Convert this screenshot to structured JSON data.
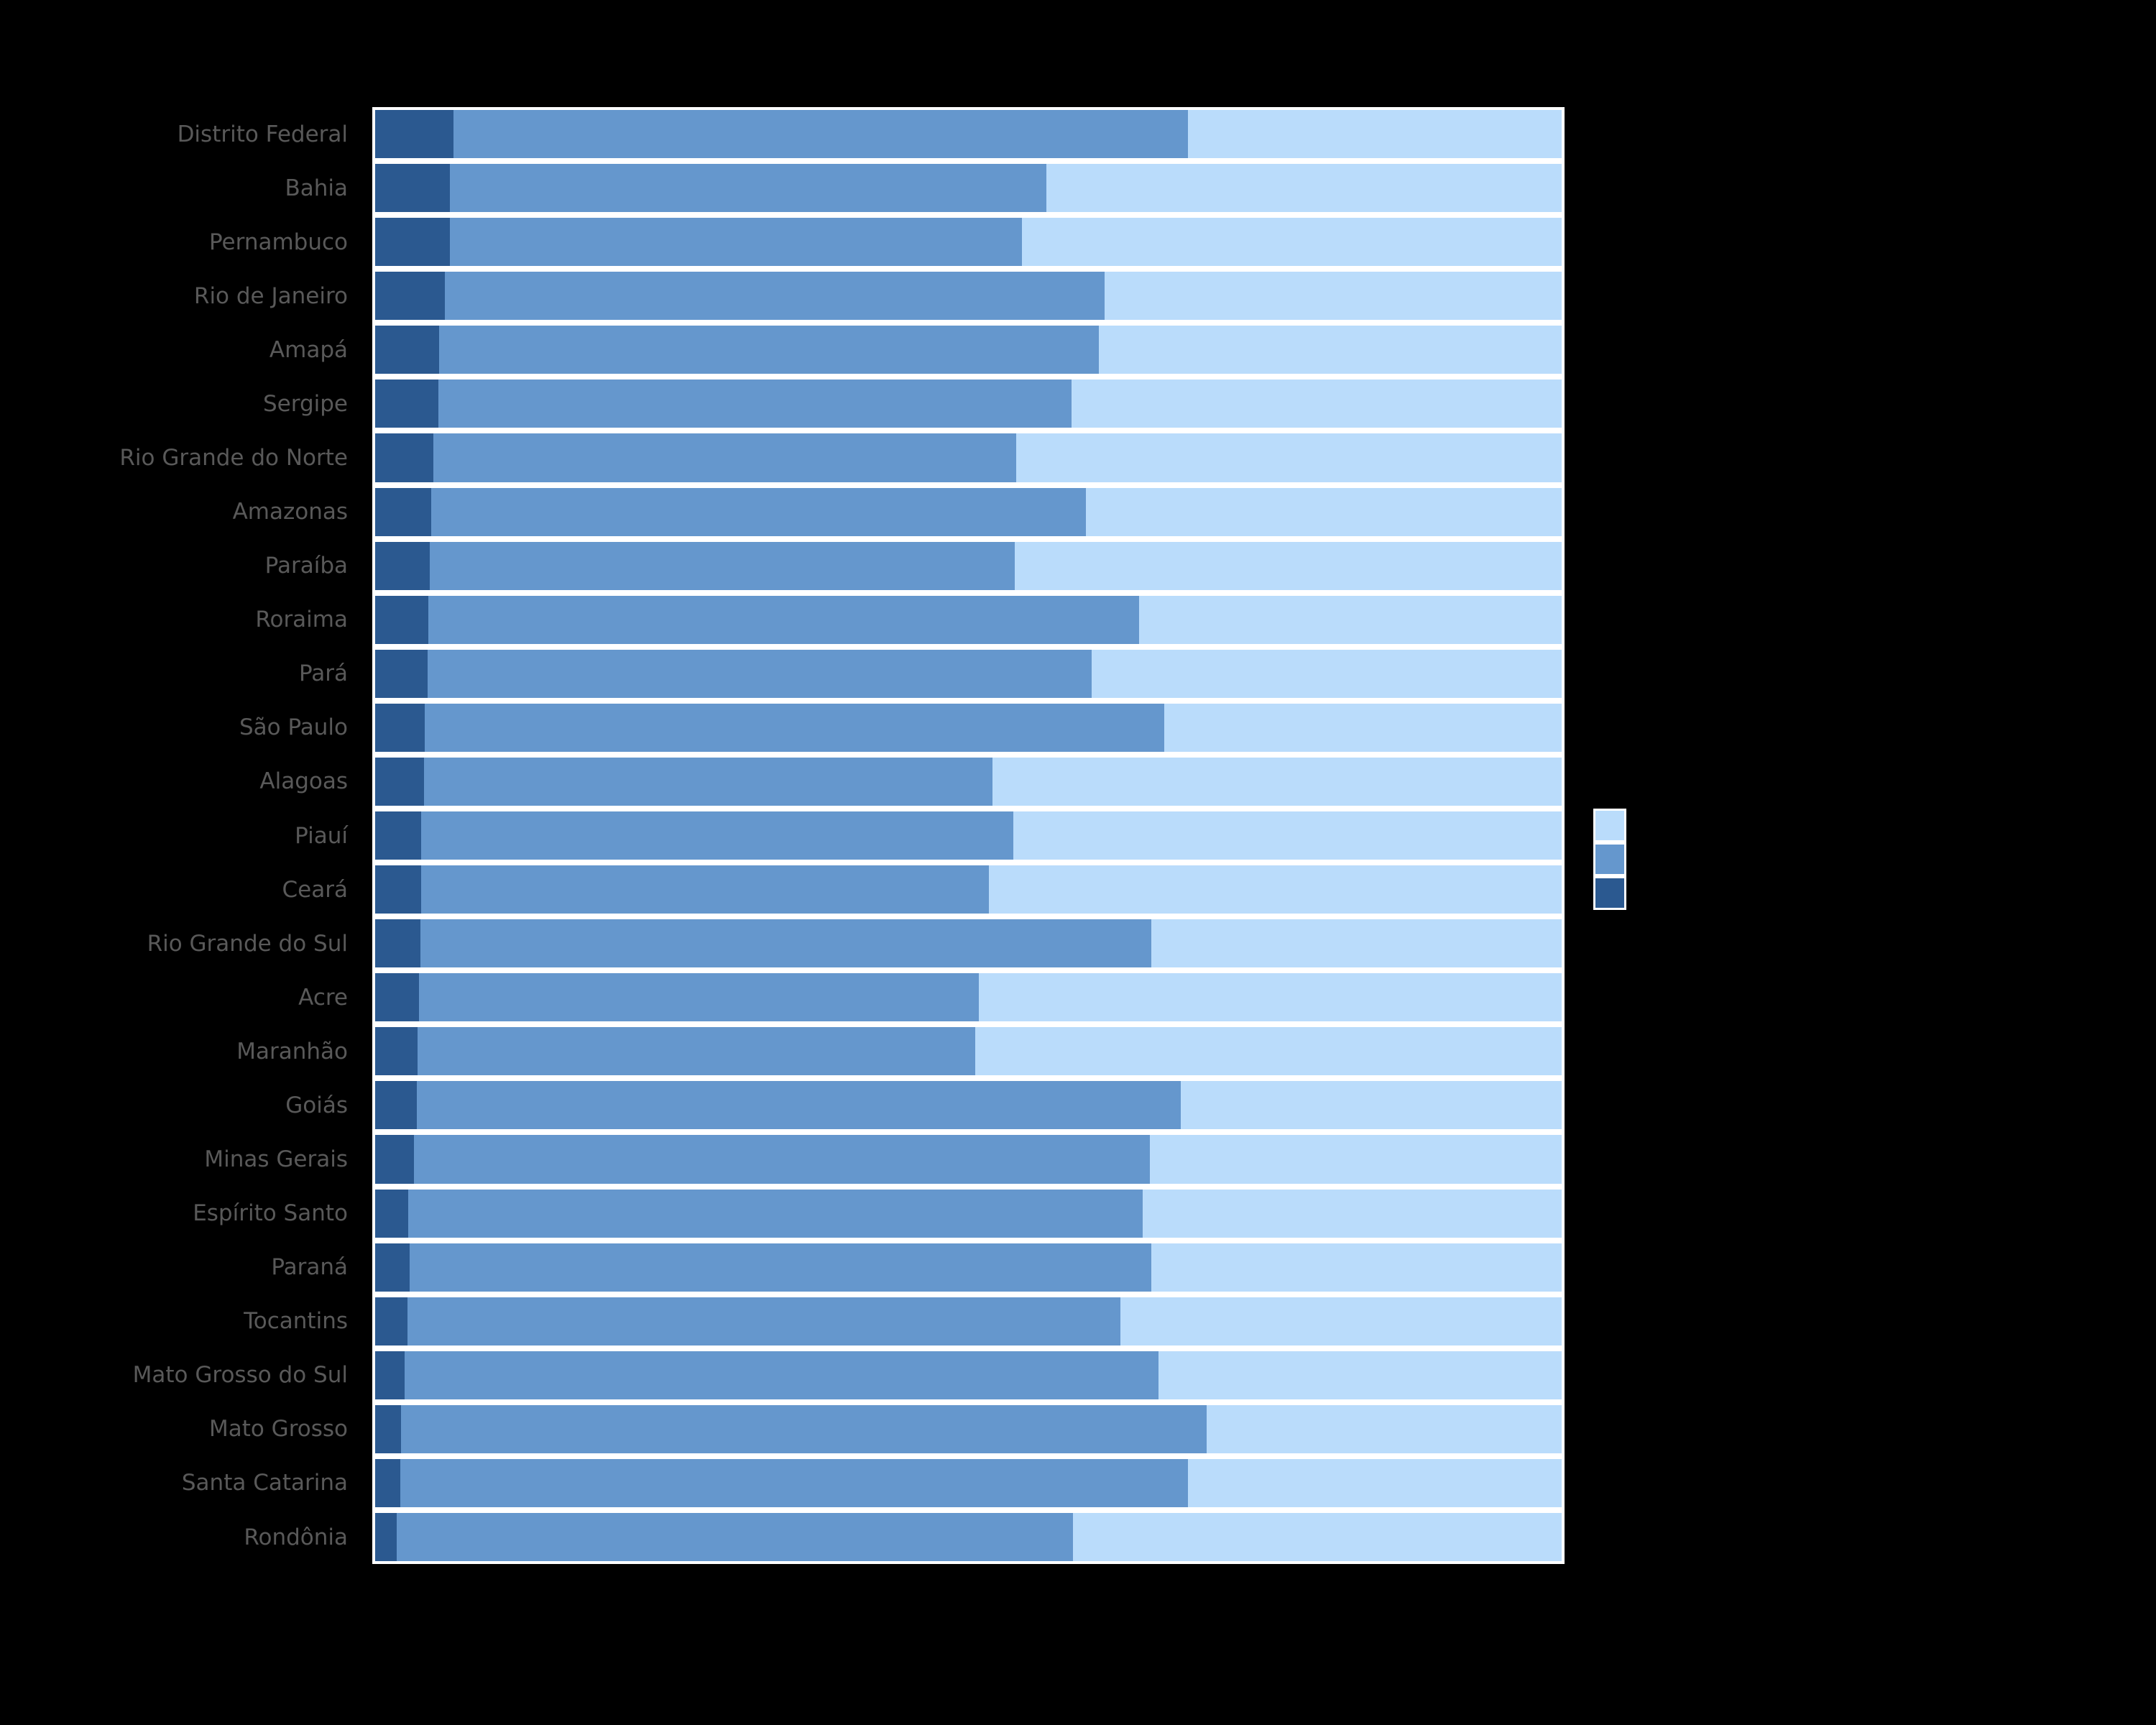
{
  "figure": {
    "background_color": "#000000",
    "tick_label_color": "#595959",
    "bar_edge_color": "#ffffff",
    "title_visible": false,
    "x_axis_tick_labels_visible": false,
    "legend_text_visible": false
  },
  "legend": {
    "position": "right-of-plot-middle",
    "labels_visible": false,
    "swatches_top_to_bottom": [
      {
        "key": "light",
        "color": "#BADCFB"
      },
      {
        "key": "medium",
        "color": "#6597CD"
      },
      {
        "key": "dark",
        "color": "#2B5990"
      }
    ]
  },
  "chart_data": {
    "type": "bar",
    "orientation": "horizontal",
    "stacked": true,
    "normalized_percent": true,
    "title": "",
    "xlabel": "",
    "ylabel": "",
    "grid": false,
    "xlim": [
      0,
      100
    ],
    "categories": [
      "Distrito Federal",
      "Bahia",
      "Pernambuco",
      "Rio de Janeiro",
      "Amapá",
      "Sergipe",
      "Rio Grande do Norte",
      "Amazonas",
      "Paraíba",
      "Roraima",
      "Pará",
      "São Paulo",
      "Alagoas",
      "Piauí",
      "Ceará",
      "Rio Grande do Sul",
      "Acre",
      "Maranhão",
      "Goiás",
      "Minas Gerais",
      "Espírito Santo",
      "Paraná",
      "Tocantins",
      "Mato Grosso do Sul",
      "Mato Grosso",
      "Santa Catarina",
      "Rondônia"
    ],
    "series": [
      {
        "key": "dark",
        "color": "#2B5990",
        "values": [
          6.6,
          6.3,
          6.3,
          5.9,
          5.4,
          5.3,
          4.9,
          4.7,
          4.6,
          4.5,
          4.4,
          4.2,
          4.1,
          3.9,
          3.9,
          3.8,
          3.7,
          3.6,
          3.5,
          3.3,
          2.8,
          2.9,
          2.7,
          2.5,
          2.2,
          2.1,
          1.8
        ]
      },
      {
        "key": "medium",
        "color": "#6597CD",
        "values": [
          61.9,
          50.3,
          48.2,
          55.6,
          55.6,
          53.4,
          49.1,
          55.2,
          49.3,
          59.9,
          56.0,
          62.3,
          47.9,
          49.9,
          47.8,
          61.6,
          47.2,
          47.0,
          64.4,
          62.0,
          61.9,
          62.5,
          60.1,
          63.5,
          67.9,
          66.4,
          57.0
        ]
      },
      {
        "key": "light",
        "color": "#BADCFB",
        "values": [
          31.5,
          43.4,
          45.5,
          38.5,
          39.0,
          41.3,
          46.0,
          40.1,
          46.1,
          35.6,
          39.6,
          33.5,
          48.0,
          46.2,
          48.3,
          34.6,
          49.1,
          49.4,
          32.1,
          34.7,
          35.3,
          34.6,
          37.2,
          34.0,
          29.9,
          31.5,
          41.2
        ]
      }
    ],
    "stacking_order_left_to_right": [
      "dark",
      "medium",
      "light"
    ],
    "legend_position": "center-right"
  }
}
